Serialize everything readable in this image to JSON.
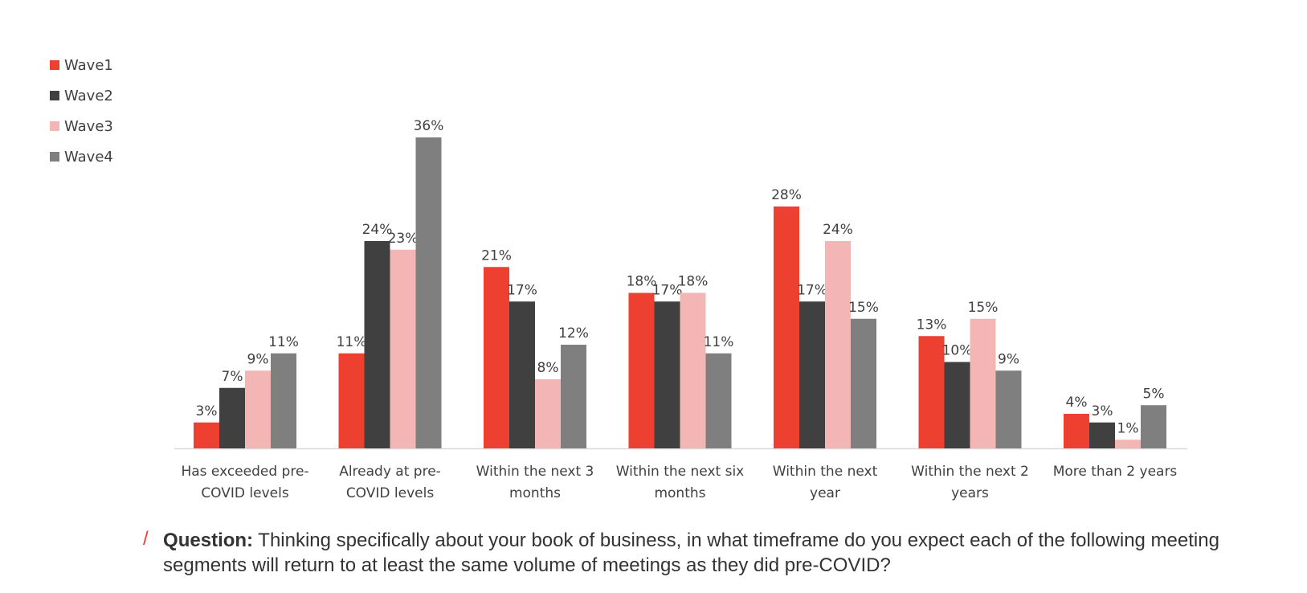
{
  "title_fragment": "",
  "legend": [
    {
      "name": "Wave1",
      "color": "#ee4031"
    },
    {
      "name": "Wave2",
      "color": "#404040"
    },
    {
      "name": "Wave3",
      "color": "#f4b6b4"
    },
    {
      "name": "Wave4",
      "color": "#7f7f7f"
    }
  ],
  "question": {
    "label": "Question:",
    "text": " Thinking specifically about your book of business, in what timeframe do you expect each of the following meeting segments will return to at least the same volume of meetings as they did pre-COVID?",
    "slash": "/"
  },
  "chart_data": {
    "type": "bar",
    "categories": [
      [
        "Has exceeded pre-",
        "COVID levels"
      ],
      [
        "Already at pre-",
        "COVID levels"
      ],
      [
        "Within the next 3",
        "months"
      ],
      [
        "Within the next six",
        "months"
      ],
      [
        "Within the next",
        "year"
      ],
      [
        "Within the next 2",
        "years"
      ],
      [
        "More than 2 years"
      ]
    ],
    "series": [
      {
        "name": "Wave1",
        "color": "#ee4031",
        "values": [
          3,
          11,
          21,
          18,
          28,
          13,
          4
        ]
      },
      {
        "name": "Wave2",
        "color": "#404040",
        "values": [
          7,
          24,
          17,
          17,
          17,
          10,
          3
        ]
      },
      {
        "name": "Wave3",
        "color": "#f4b6b4",
        "values": [
          9,
          23,
          8,
          18,
          24,
          15,
          1
        ]
      },
      {
        "name": "Wave4",
        "color": "#7f7f7f",
        "values": [
          11,
          36,
          12,
          11,
          15,
          9,
          5
        ]
      }
    ],
    "value_suffix": "%",
    "ylim": [
      0,
      36
    ],
    "legend_position": "top-left",
    "grid": false
  }
}
